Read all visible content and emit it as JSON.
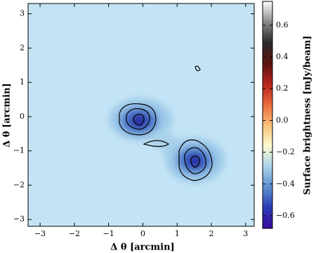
{
  "chart_data": {
    "type": "image",
    "xlabel": "Δ θ [arcmin]",
    "ylabel": "Δ θ [arcmin]",
    "xlim": [
      -3.35,
      3.25
    ],
    "ylim": [
      -3.2,
      3.3
    ],
    "xticks": [
      {
        "value": -3,
        "label": "−3"
      },
      {
        "value": -2,
        "label": "−2"
      },
      {
        "value": -1,
        "label": "−1"
      },
      0,
      1,
      2,
      3
    ],
    "yticks": [
      {
        "value": -3,
        "label": "−3"
      },
      {
        "value": -2,
        "label": "−2"
      },
      {
        "value": -1,
        "label": "−1"
      },
      0,
      1,
      2,
      3
    ],
    "colorbar": {
      "label": "Surface brightness [mJy/beam]",
      "lim": [
        -0.68,
        0.75
      ],
      "ticks": [
        {
          "value": -0.6,
          "label": "−0.6"
        },
        {
          "value": -0.4,
          "label": "−0.4"
        },
        {
          "value": -0.2,
          "label": "−0.2"
        },
        {
          "value": 0,
          "label": "0.0"
        },
        {
          "value": 0.2,
          "label": "0.2"
        },
        {
          "value": 0.4,
          "label": "0.4"
        },
        {
          "value": 0.6,
          "label": "0.6"
        }
      ],
      "colormap": [
        "#3a0a9e",
        "#2a3cb4",
        "#5b8fd0",
        "#a9d2ea",
        "#fdfbd0",
        "#fbc07a",
        "#ea6a3a",
        "#b8231e",
        "#5a1410",
        "#2b2b2b",
        "#8a8a8a",
        "#ffffff"
      ]
    }
  }
}
